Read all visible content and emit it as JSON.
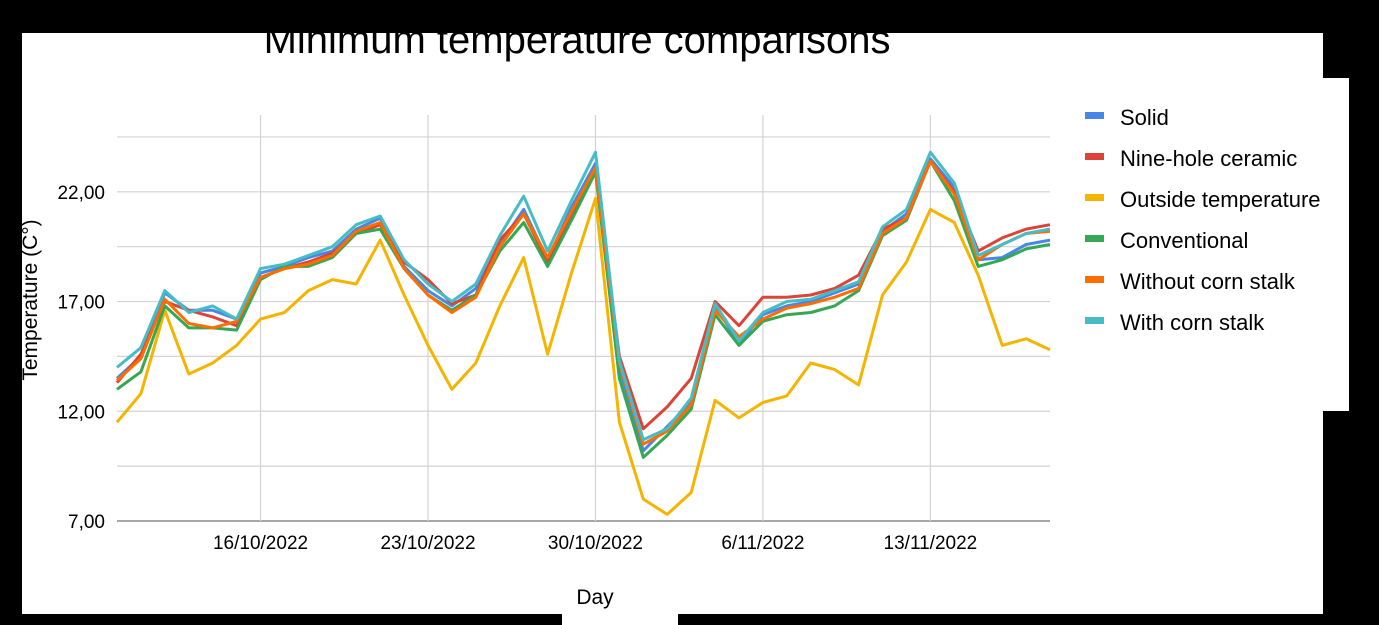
{
  "chart_data": {
    "type": "line",
    "title": "Minimum temperature comparisons",
    "xlabel": "Day",
    "ylabel": "Temperature (C°)",
    "ylim": [
      7,
      25.5
    ],
    "yticks": [
      "7,00",
      "12,00",
      "17,00",
      "22,00"
    ],
    "ytick_values": [
      7,
      12,
      17,
      22
    ],
    "grid": true,
    "legend_position": "right",
    "x_dates": [
      "10/10/2022",
      "11/10/2022",
      "12/10/2022",
      "13/10/2022",
      "14/10/2022",
      "15/10/2022",
      "16/10/2022",
      "17/10/2022",
      "18/10/2022",
      "19/10/2022",
      "20/10/2022",
      "21/10/2022",
      "22/10/2022",
      "23/10/2022",
      "24/10/2022",
      "25/10/2022",
      "26/10/2022",
      "27/10/2022",
      "28/10/2022",
      "29/10/2022",
      "30/10/2022",
      "31/10/2022",
      "1/11/2022",
      "2/11/2022",
      "3/11/2022",
      "4/11/2022",
      "5/11/2022",
      "6/11/2022",
      "7/11/2022",
      "8/11/2022",
      "9/11/2022",
      "10/11/2022",
      "11/11/2022",
      "12/11/2022",
      "13/11/2022",
      "14/11/2022",
      "15/11/2022",
      "16/11/2022",
      "17/11/2022",
      "18/11/2022"
    ],
    "xticks": [
      "16/10/2022",
      "23/10/2022",
      "30/10/2022",
      "6/11/2022",
      "13/11/2022"
    ],
    "xtick_index": [
      6,
      13,
      20,
      27,
      34
    ],
    "series": [
      {
        "name": "Solid",
        "color": "#4a86e8",
        "values": [
          13.5,
          14.5,
          17.4,
          16.6,
          16.6,
          16.2,
          18.3,
          18.6,
          19.0,
          19.3,
          20.3,
          20.8,
          18.6,
          17.5,
          16.8,
          17.6,
          19.6,
          21.2,
          18.9,
          21.3,
          23.3,
          14.0,
          10.2,
          11.3,
          12.4,
          16.8,
          15.1,
          16.4,
          16.8,
          17.0,
          17.4,
          17.8,
          20.2,
          21.0,
          23.5,
          22.2,
          18.9,
          19.0,
          19.6,
          19.8
        ]
      },
      {
        "name": "Nine-hole ceramic",
        "color": "#db4437",
        "values": [
          13.3,
          14.6,
          17.0,
          16.6,
          16.3,
          15.9,
          18.1,
          18.5,
          18.8,
          19.2,
          20.1,
          20.5,
          18.8,
          18.0,
          16.9,
          17.3,
          19.8,
          21.0,
          18.8,
          21.0,
          23.0,
          14.5,
          11.2,
          12.2,
          13.5,
          17.0,
          15.9,
          17.2,
          17.2,
          17.3,
          17.6,
          18.2,
          20.3,
          20.8,
          23.4,
          22.0,
          19.3,
          19.9,
          20.3,
          20.5
        ]
      },
      {
        "name": "Outside temperature",
        "color": "#f4b400",
        "values": [
          11.5,
          12.8,
          16.6,
          13.7,
          14.2,
          15.0,
          16.2,
          16.5,
          17.5,
          18.0,
          17.8,
          19.8,
          17.3,
          15.0,
          13.0,
          14.2,
          16.8,
          19.0,
          14.6,
          18.3,
          21.7,
          11.5,
          8.0,
          7.3,
          8.3,
          12.5,
          11.7,
          12.4,
          12.7,
          14.2,
          13.9,
          13.2,
          17.3,
          18.8,
          21.2,
          20.6,
          18.2,
          15.0,
          15.3,
          14.8
        ]
      },
      {
        "name": "Conventional",
        "color": "#34a853",
        "values": [
          13.0,
          13.8,
          16.8,
          15.8,
          15.8,
          15.7,
          18.0,
          18.6,
          18.6,
          19.0,
          20.1,
          20.3,
          18.5,
          17.3,
          16.6,
          17.3,
          19.3,
          20.6,
          18.6,
          20.7,
          22.9,
          13.5,
          9.9,
          10.9,
          12.1,
          16.4,
          15.0,
          16.1,
          16.4,
          16.5,
          16.8,
          17.5,
          20.0,
          20.7,
          23.4,
          21.6,
          18.6,
          18.9,
          19.4,
          19.6
        ]
      },
      {
        "name": "Without corn stalk",
        "color": "#ff6d00",
        "values": [
          13.4,
          14.4,
          17.1,
          16.0,
          15.8,
          16.1,
          18.1,
          18.5,
          18.7,
          19.1,
          20.2,
          20.6,
          18.5,
          17.3,
          16.5,
          17.2,
          19.5,
          21.0,
          19.0,
          21.1,
          23.1,
          14.2,
          10.5,
          11.1,
          12.3,
          16.6,
          15.4,
          16.2,
          16.7,
          16.9,
          17.2,
          17.6,
          20.1,
          20.8,
          23.4,
          21.9,
          18.9,
          19.6,
          20.1,
          20.2
        ]
      },
      {
        "name": "With corn stalk",
        "color": "#46bdc6",
        "values": [
          14.0,
          14.9,
          17.5,
          16.5,
          16.8,
          16.2,
          18.5,
          18.7,
          19.1,
          19.5,
          20.5,
          20.9,
          18.9,
          17.8,
          17.0,
          17.8,
          20.0,
          21.8,
          19.3,
          21.6,
          23.8,
          14.3,
          10.7,
          11.2,
          12.6,
          16.9,
          15.2,
          16.5,
          17.0,
          17.1,
          17.5,
          17.9,
          20.4,
          21.2,
          23.8,
          22.4,
          19.1,
          19.6,
          20.1,
          20.3
        ]
      }
    ]
  }
}
